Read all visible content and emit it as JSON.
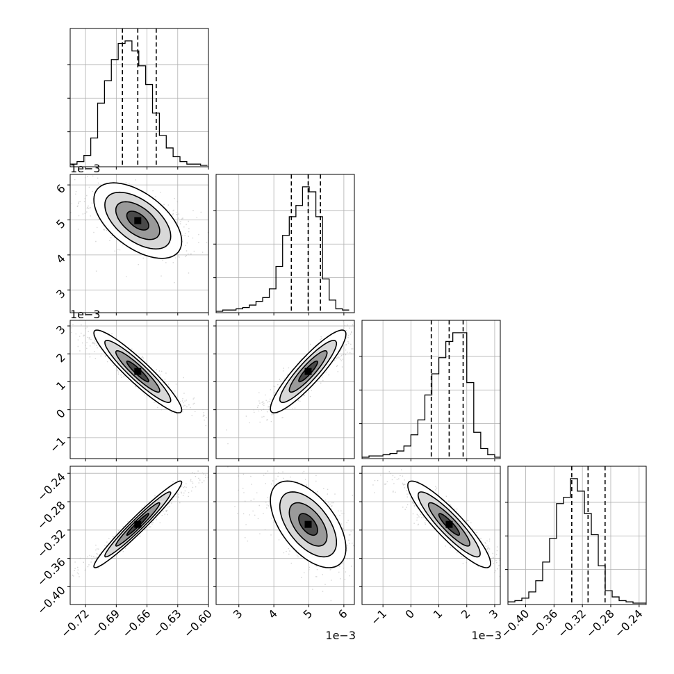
{
  "chart_data": {
    "type": "corner",
    "parameters": [
      {
        "range": [
          -0.735,
          -0.6
        ],
        "ticks": [
          -0.72,
          -0.69,
          -0.66,
          -0.63,
          -0.6
        ],
        "tick_labels": [
          "−0.72",
          "−0.69",
          "−0.66",
          "−0.63",
          "−0.60"
        ],
        "offset_text": "",
        "quantiles": [
          -0.684,
          -0.669,
          -0.651
        ]
      },
      {
        "range": [
          2.35,
          6.3
        ],
        "ticks": [
          3,
          4,
          5,
          6
        ],
        "tick_labels": [
          "3",
          "4",
          "5",
          "6"
        ],
        "offset_text": "1e−3",
        "quantiles": [
          4.5,
          4.98,
          5.33
        ]
      },
      {
        "range": [
          -1.75,
          3.2
        ],
        "ticks": [
          -1,
          0,
          1,
          2,
          3
        ],
        "tick_labels": [
          "−1",
          "0",
          "1",
          "2",
          "3"
        ],
        "offset_text": "1e−3",
        "quantiles": [
          0.73,
          1.37,
          1.87
        ]
      },
      {
        "range": [
          -0.425,
          -0.23
        ],
        "ticks": [
          -0.4,
          -0.36,
          -0.32,
          -0.28,
          -0.24
        ],
        "tick_labels": [
          "−0.40",
          "−0.36",
          "−0.32",
          "−0.28",
          "−0.24"
        ],
        "offset_text": "",
        "quantiles": [
          -0.335,
          -0.312,
          -0.288
        ]
      }
    ],
    "histograms": [
      {
        "edges_from": -0.735,
        "bin_width": 0.0067,
        "counts": [
          1,
          3,
          8,
          22,
          50,
          68,
          85,
          98,
          100,
          92,
          80,
          65,
          42,
          24,
          14,
          7,
          3,
          1,
          1,
          0
        ]
      },
      {
        "edges_from": 2.35,
        "bin_width": 0.19,
        "counts": [
          0,
          1,
          1,
          2,
          3,
          5,
          8,
          11,
          18,
          36,
          61,
          76,
          85,
          100,
          96,
          76,
          26,
          9,
          2,
          1
        ]
      },
      {
        "edges_from": -1.75,
        "bin_width": 0.25,
        "counts": [
          0,
          1,
          1,
          2,
          3,
          5,
          9,
          18,
          30,
          50,
          67,
          80,
          93,
          100,
          100,
          60,
          20,
          7,
          2,
          0
        ]
      },
      {
        "edges_from": -0.425,
        "bin_width": 0.0098,
        "counts": [
          1,
          2,
          4,
          9,
          18,
          33,
          52,
          80,
          85,
          100,
          90,
          72,
          55,
          30,
          10,
          5,
          2,
          1,
          0,
          0
        ]
      }
    ],
    "correlations": [
      {
        "pair": [
          0,
          1
        ],
        "rho": -0.55
      },
      {
        "pair": [
          0,
          2
        ],
        "rho": -0.93
      },
      {
        "pair": [
          1,
          2
        ],
        "rho": 0.9
      },
      {
        "pair": [
          0,
          3
        ],
        "rho": 0.97
      },
      {
        "pair": [
          1,
          3
        ],
        "rho": -0.55
      },
      {
        "pair": [
          2,
          3
        ],
        "rho": -0.9
      }
    ],
    "grid": true,
    "colors": {
      "samples": "#b0b0b0",
      "contour": "#000000",
      "grid": "#b0b0b0",
      "frame": "#000000",
      "fill_dark": "#000000"
    }
  }
}
